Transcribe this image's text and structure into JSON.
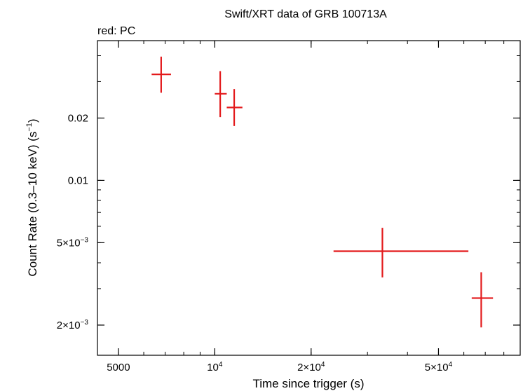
{
  "chart_data": {
    "type": "scatter",
    "title": "Swift/XRT data of GRB 100713A",
    "subtitle": "red: PC",
    "xlabel": "Time since trigger (s)",
    "ylabel_parts": {
      "main": "Count Rate (0.3–10 keV) (s",
      "sup": "−1",
      "end": ")"
    },
    "x_scale": "log",
    "y_scale": "log",
    "xlim": [
      4300,
      90000
    ],
    "ylim": [
      0.00143,
      0.0473
    ],
    "grid": false,
    "legend": "none",
    "series_color": "#e31a1c",
    "x_ticks": [
      {
        "value": 5000,
        "mant": "5000",
        "exp": ""
      },
      {
        "value": 10000,
        "mant": "10",
        "exp": "4"
      },
      {
        "value": 20000,
        "mant": "2×10",
        "exp": "4"
      },
      {
        "value": 50000,
        "mant": "5×10",
        "exp": "4"
      }
    ],
    "y_ticks": [
      {
        "value": 0.002,
        "mant": "2×10",
        "exp": "−3"
      },
      {
        "value": 0.005,
        "mant": "5×10",
        "exp": "−3"
      },
      {
        "value": 0.01,
        "mant": "0.01",
        "exp": ""
      },
      {
        "value": 0.02,
        "mant": "0.02",
        "exp": ""
      }
    ],
    "points": [
      {
        "x": 6800,
        "xlo": 6350,
        "xhi": 7300,
        "y": 0.0325,
        "ylo": 0.0265,
        "yhi": 0.0396
      },
      {
        "x": 10400,
        "xlo": 10000,
        "xhi": 10900,
        "y": 0.0262,
        "ylo": 0.0202,
        "yhi": 0.0337
      },
      {
        "x": 11500,
        "xlo": 10900,
        "xhi": 12200,
        "y": 0.0225,
        "ylo": 0.0183,
        "yhi": 0.0276
      },
      {
        "x": 33400,
        "xlo": 23500,
        "xhi": 62000,
        "y": 0.00455,
        "ylo": 0.0034,
        "yhi": 0.0059
      },
      {
        "x": 68000,
        "xlo": 63500,
        "xhi": 74000,
        "y": 0.0027,
        "ylo": 0.00195,
        "yhi": 0.0036
      }
    ]
  }
}
